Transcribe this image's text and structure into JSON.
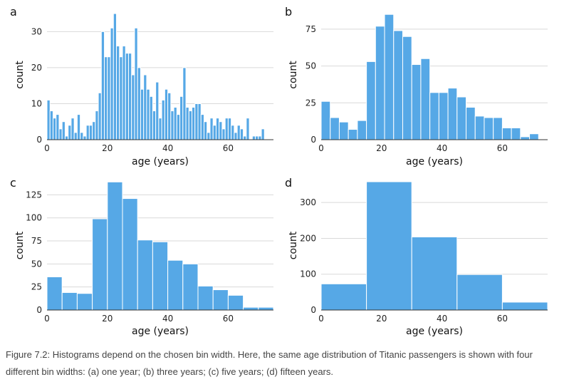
{
  "caption": "Figure 7.2: Histograms depend on the chosen bin width. Here, the same age distribution of Titanic passengers is shown with four different bin widths: (a) one year; (b) three years; (c) five years; (d) fifteen years.",
  "colors": {
    "bar": "#56a8e6",
    "grid": "#d9d9d9"
  },
  "chart_data": [
    {
      "type": "bar",
      "panel": "a",
      "title": "",
      "xlabel": "age (years)",
      "ylabel": "count",
      "bin_width": 1,
      "x_start": 0,
      "xlim": [
        0,
        75
      ],
      "ylim": [
        0,
        36
      ],
      "xticks": [
        0,
        20,
        40,
        60
      ],
      "yticks": [
        0,
        10,
        20,
        30
      ],
      "grid": "horizontal",
      "values": [
        11,
        8,
        6,
        7,
        3,
        5,
        1,
        4,
        6,
        2,
        7,
        2,
        1,
        4,
        4,
        5,
        8,
        13,
        30,
        23,
        23,
        31,
        35,
        26,
        23,
        26,
        24,
        24,
        18,
        31,
        20,
        14,
        18,
        14,
        12,
        8,
        16,
        6,
        11,
        14,
        13,
        8,
        9,
        7,
        12,
        20,
        9,
        8,
        9,
        10,
        10,
        7,
        5,
        2,
        6,
        4,
        6,
        5,
        3,
        6,
        6,
        4,
        2,
        4,
        3,
        1,
        6,
        0,
        1,
        1,
        1,
        3
      ]
    },
    {
      "type": "bar",
      "panel": "b",
      "title": "",
      "xlabel": "age (years)",
      "ylabel": "count",
      "bin_width": 3,
      "x_start": 0,
      "xlim": [
        0,
        75
      ],
      "ylim": [
        0,
        88
      ],
      "xticks": [
        0,
        20,
        40,
        60
      ],
      "yticks": [
        0,
        25,
        50,
        75
      ],
      "grid": "horizontal",
      "values": [
        26,
        15,
        12,
        7,
        13,
        53,
        77,
        85,
        74,
        70,
        51,
        55,
        32,
        32,
        35,
        29,
        22,
        16,
        15,
        15,
        8,
        8,
        2,
        4
      ]
    },
    {
      "type": "bar",
      "panel": "c",
      "title": "",
      "xlabel": "age (years)",
      "ylabel": "count",
      "bin_width": 5,
      "x_start": 0,
      "xlim": [
        0,
        75
      ],
      "ylim": [
        0,
        140
      ],
      "xticks": [
        0,
        20,
        40,
        60
      ],
      "yticks": [
        0,
        25,
        50,
        75,
        100,
        125
      ],
      "grid": "horizontal",
      "values": [
        36,
        19,
        18,
        99,
        139,
        121,
        76,
        74,
        54,
        50,
        26,
        22,
        16,
        3,
        3
      ]
    },
    {
      "type": "bar",
      "panel": "d",
      "title": "",
      "xlabel": "age (years)",
      "ylabel": "count",
      "bin_width": 15,
      "x_start": 0,
      "xlim": [
        0,
        75
      ],
      "ylim": [
        0,
        360
      ],
      "xticks": [
        0,
        20,
        40,
        60
      ],
      "yticks": [
        0,
        100,
        200,
        300
      ],
      "grid": "horizontal",
      "values": [
        73,
        358,
        204,
        99,
        22
      ]
    }
  ]
}
